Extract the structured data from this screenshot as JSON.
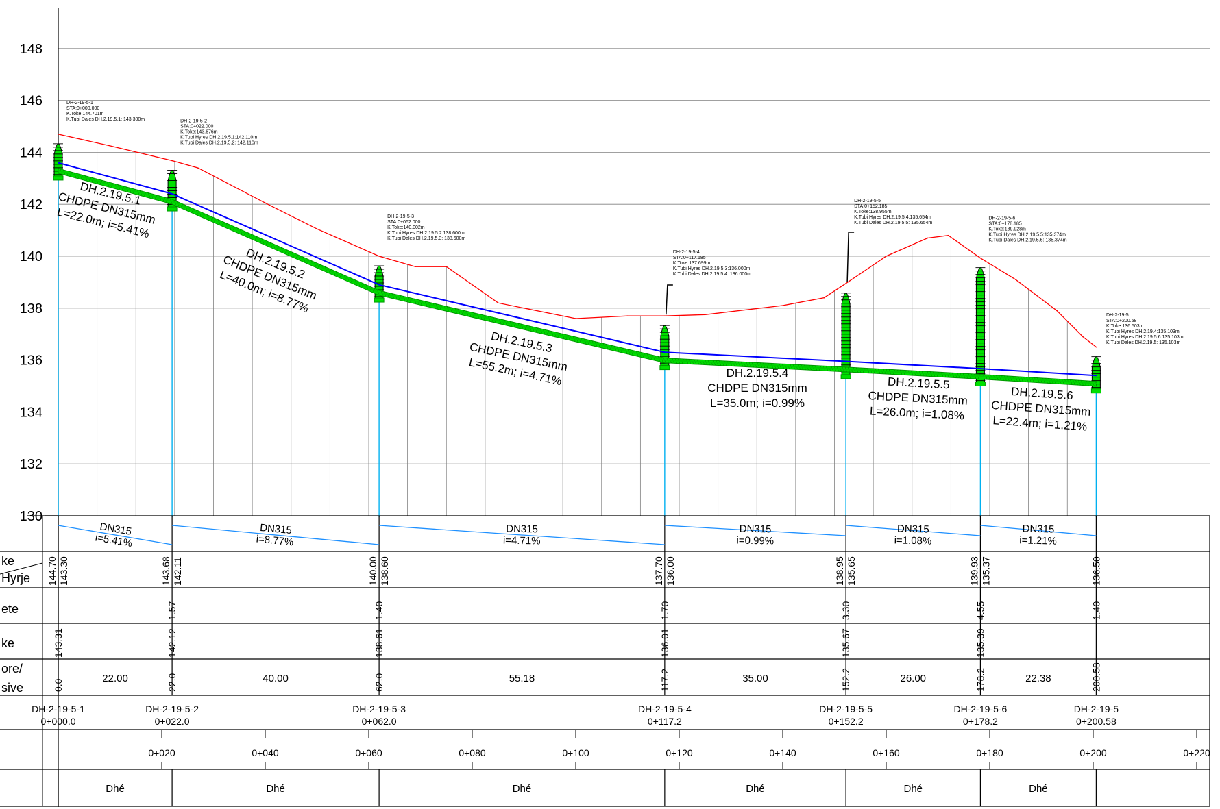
{
  "title": "",
  "y_axis": {
    "min": 130,
    "max": 148,
    "ticks": [
      "148",
      "146",
      "144",
      "142",
      "140",
      "138",
      "136",
      "134",
      "132",
      "130"
    ]
  },
  "chainage_axis": {
    "ticks": [
      "0+020",
      "0+040",
      "0+060",
      "0+080",
      "0+100",
      "0+120",
      "0+140",
      "0+160",
      "0+180",
      "0+200",
      "0+220"
    ]
  },
  "chart_data": {
    "type": "line",
    "xlabel": "",
    "ylabel": "",
    "ylim": [
      130,
      148
    ],
    "xlim": [
      0,
      210
    ],
    "series": [
      {
        "color": "#ff0000",
        "x": [
          0,
          10,
          22,
          27,
          40,
          50,
          62,
          69,
          75,
          85,
          100,
          110,
          117.2,
          125,
          140,
          148,
          152.2,
          160,
          168,
          172,
          178.2,
          185,
          193,
          198,
          200.58
        ],
        "values": [
          144.7,
          144.25,
          143.68,
          143.4,
          142.05,
          141.05,
          140.0,
          139.6,
          139.6,
          138.2,
          137.6,
          137.7,
          137.7,
          137.75,
          138.1,
          138.4,
          138.95,
          140.0,
          140.7,
          140.8,
          139.93,
          139.1,
          137.9,
          136.9,
          136.5
        ]
      },
      {
        "color": "#0000ff",
        "x": [
          0,
          22,
          62,
          117.2,
          152.2,
          178.2,
          200.58
        ],
        "values": [
          143.6,
          142.4,
          138.9,
          136.3,
          135.95,
          135.67,
          135.4
        ]
      },
      {
        "color": "#00cc00",
        "x": [
          0,
          22,
          62,
          117.2,
          152.2,
          178.2,
          200.58
        ],
        "values": [
          143.3,
          142.11,
          138.6,
          136.0,
          135.65,
          135.37,
          135.1
        ]
      }
    ]
  },
  "manholes": [
    {
      "sta": 0,
      "top": 144.7,
      "bottom": 143.3,
      "label": [
        "DH-2-19-5-1",
        "STA:0+000.000",
        "K.Toke:144.701m",
        "K.Tubi Dales DH.2.19.5.1:  143.300m"
      ]
    },
    {
      "sta": 22,
      "top": 143.68,
      "bottom": 142.11,
      "label": [
        "DH-2-19-5-2",
        "STA:0+022.000",
        "K.Toke:143.676m",
        "K.Tubi Hyres DH.2.19.5.1:142.110m",
        "K.Tubi Dales DH.2.19.5.2:  142.110m"
      ]
    },
    {
      "sta": 62,
      "top": 140.0,
      "bottom": 138.6,
      "label": [
        "DH-2-19-5-3",
        "STA:0+062.000",
        "K.Toke:140.002m",
        "K.Tubi Hyres DH.2.19.5.2:138.600m",
        "K.Tubi Dales DH.2.19.5.3:  138.600m"
      ]
    },
    {
      "sta": 117.2,
      "top": 137.7,
      "bottom": 136.0,
      "label": [
        "DH-2-19-5-4",
        "STA:0+117.185",
        "K.Toke:137.699m",
        "K.Tubi Hyres DH.2.19.5.3:136.000m",
        "K.Tubi Dales DH.2.19.5.4:  136.000m"
      ]
    },
    {
      "sta": 152.2,
      "top": 138.95,
      "bottom": 135.65,
      "label": [
        "DH-2-19-5-5",
        "STA:0+152.185",
        "K.Toke:138.955m",
        "K.Tubi Hyres DH.2.19.5.4:135.654m",
        "K.Tubi Dales DH.2.19.5.5:  135.654m"
      ]
    },
    {
      "sta": 178.2,
      "top": 139.93,
      "bottom": 135.37,
      "label": [
        "DH-2-19-5-6",
        "STA:0+178.185",
        "K.Toke:139.928m",
        "K.Tubi Hyres DH.2.19.5.5:135.374m",
        "K.Tubi Dales DH.2.19.5.6:  135.374m"
      ]
    },
    {
      "sta": 200.58,
      "top": 136.5,
      "bottom": 135.1,
      "label": [
        "DH-2-19-5",
        "STA:0+200.58",
        "K.Toke:136.503m",
        "K.Tubi Hyres DH.2.19.4:135.103m",
        "K.Tubi Hyres DH.2.19.5.6:135.103m",
        "K.Tubi Dales DH.2.19.5:  135.103m"
      ]
    }
  ],
  "pipe_labels": [
    [
      "DH.2.19.5.1",
      "CHDPE DN315mm",
      "L=22.0m; i=5.41%"
    ],
    [
      "DH.2.19.5.2",
      "CHDPE DN315mm",
      "L=40.0m; i=8.77%"
    ],
    [
      "DH.2.19.5.3",
      "CHDPE DN315mm",
      "L=55.2m; i=4.71%"
    ],
    [
      "DH.2.19.5.4",
      "CHDPE DN315mm",
      "L=35.0m; i=0.99%"
    ],
    [
      "DH.2.19.5.5",
      "CHDPE DN315mm",
      "L=26.0m; i=1.08%"
    ],
    [
      "DH.2.19.5.6",
      "CHDPE DN315mm",
      "L=22.4m; i=1.21%"
    ]
  ],
  "table": {
    "row_labels": [
      "ke",
      "Hyrje",
      "ete",
      "ke",
      "ore/",
      "sive"
    ],
    "segments": [
      {
        "dn": "DN315",
        "slope": "i=5.41%"
      },
      {
        "dn": "DN315",
        "slope": "i=8.77%"
      },
      {
        "dn": "DN315",
        "slope": "i=4.71%"
      },
      {
        "dn": "DN315",
        "slope": "i=0.99%"
      },
      {
        "dn": "DN315",
        "slope": "i=1.08%"
      },
      {
        "dn": "DN315",
        "slope": "i=1.21%"
      }
    ],
    "elevations": [
      {
        "sta": 0,
        "texts": [
          "144.70",
          "143.30"
        ]
      },
      {
        "sta": 22,
        "texts": [
          "143.68",
          "142.11"
        ]
      },
      {
        "sta": 62,
        "texts": [
          "140.00",
          "138.60"
        ]
      },
      {
        "sta": 117.2,
        "texts": [
          "137.70",
          "136.00"
        ]
      },
      {
        "sta": 152.2,
        "texts": [
          "138.95",
          "135.65"
        ]
      },
      {
        "sta": 178.2,
        "texts": [
          "139.93",
          "135.37"
        ]
      },
      {
        "sta": 200.58,
        "texts": [
          "136.50"
        ]
      }
    ],
    "depths": [
      {
        "sta": 22,
        "text": "1.57"
      },
      {
        "sta": 62,
        "text": "1.40"
      },
      {
        "sta": 117.2,
        "text": "1.70"
      },
      {
        "sta": 152.2,
        "text": "3.30"
      },
      {
        "sta": 178.2,
        "text": "4.55"
      },
      {
        "sta": 200.58,
        "text": "1.40"
      }
    ],
    "inverts": [
      {
        "sta": 0,
        "text": "143.31"
      },
      {
        "sta": 22,
        "text": "142.12"
      },
      {
        "sta": 62,
        "text": "138.61"
      },
      {
        "sta": 117.2,
        "text": "136.01"
      },
      {
        "sta": 152.2,
        "text": "135.67"
      },
      {
        "sta": 178.2,
        "text": "135.39"
      }
    ],
    "cumulative": [
      {
        "sta": 0,
        "text": "0.0"
      },
      {
        "sta": 22,
        "text": "22.0"
      },
      {
        "sta": 62,
        "text": "62.0"
      },
      {
        "sta": 117.2,
        "text": "117.2"
      },
      {
        "sta": 152.2,
        "text": "152.2"
      },
      {
        "sta": 178.2,
        "text": "178.2"
      },
      {
        "sta": 200.58,
        "text": "200.58"
      }
    ],
    "distances": [
      "22.00",
      "40.00",
      "55.18",
      "35.00",
      "26.00",
      "22.38"
    ],
    "names": [
      {
        "sta": 0,
        "name": "DH-2-19-5-1",
        "chainage": "0+000.0"
      },
      {
        "sta": 22,
        "name": "DH-2-19-5-2",
        "chainage": "0+022.0"
      },
      {
        "sta": 62,
        "name": "DH-2-19-5-3",
        "chainage": "0+062.0"
      },
      {
        "sta": 117.2,
        "name": "DH-2-19-5-4",
        "chainage": "0+117.2"
      },
      {
        "sta": 152.2,
        "name": "DH-2-19-5-5",
        "chainage": "0+152.2"
      },
      {
        "sta": 178.2,
        "name": "DH-2-19-5-6",
        "chainage": "0+178.2"
      },
      {
        "sta": 200.58,
        "name": "DH-2-19-5",
        "chainage": "0+200.58"
      }
    ],
    "terrain": [
      "Dhé",
      "Dhé",
      "Dhé",
      "Dhé",
      "Dhé",
      "Dhé"
    ]
  },
  "colors": {
    "ground": "#ff0000",
    "pipe_top": "#0000ff",
    "pipe_fill": "#00e000",
    "pipe_stroke": "#009900",
    "drop_line": "#00b0f0",
    "slope_line": "#1e90ff",
    "grid": "#808080"
  }
}
